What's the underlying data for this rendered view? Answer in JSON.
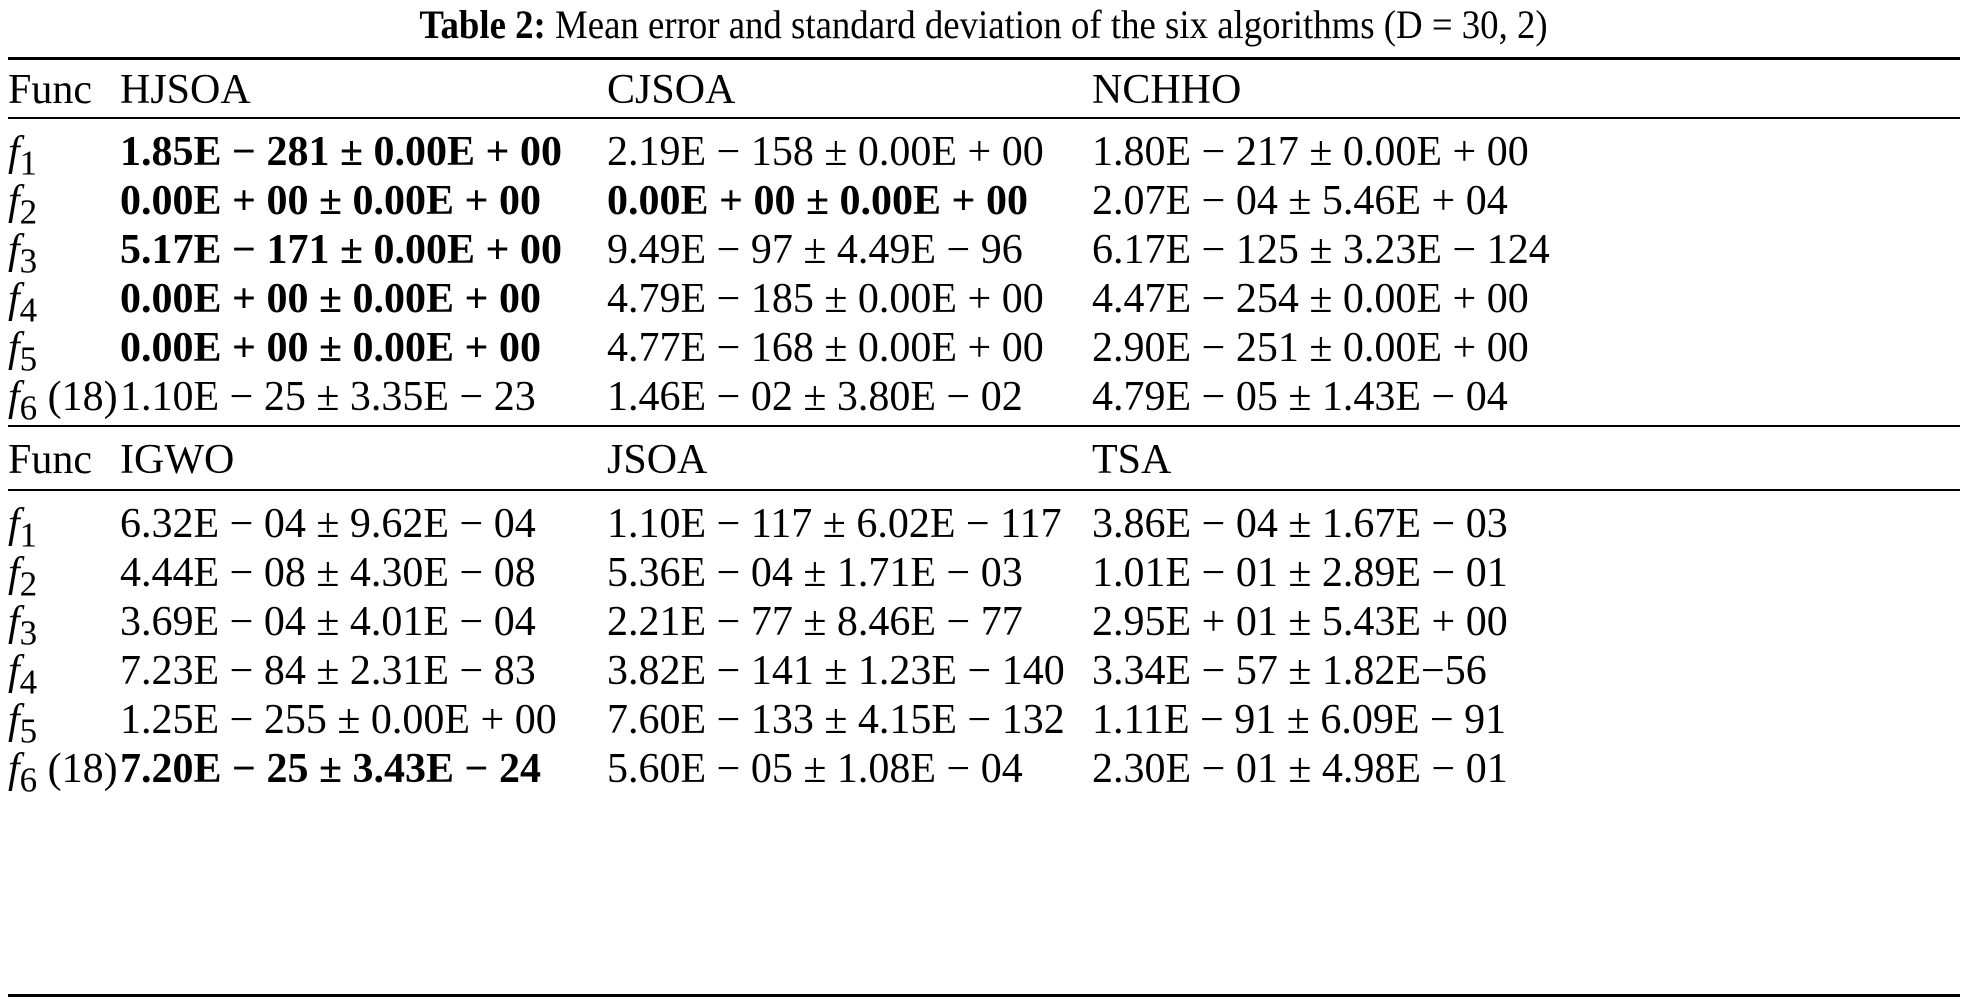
{
  "caption": {
    "label": "Table 2:",
    "text": "Mean error and standard deviation of the six algorithms (D = 30, 2)"
  },
  "blocks": [
    {
      "header": [
        "Func",
        "HJSOA",
        "CJSOA",
        "NCHHO"
      ],
      "rows": [
        {
          "fn": "f",
          "sub": "1",
          "suffix": "",
          "cells": [
            {
              "value": "1.85E − 281 ± 0.00E + 00",
              "bold": true
            },
            {
              "value": "2.19E − 158 ± 0.00E + 00",
              "bold": false
            },
            {
              "value": "1.80E − 217 ± 0.00E + 00",
              "bold": false
            }
          ]
        },
        {
          "fn": "f",
          "sub": "2",
          "suffix": "",
          "cells": [
            {
              "value": "0.00E + 00 ± 0.00E + 00",
              "bold": true
            },
            {
              "value": "0.00E + 00 ± 0.00E + 00",
              "bold": true
            },
            {
              "value": "2.07E − 04 ± 5.46E + 04",
              "bold": false
            }
          ]
        },
        {
          "fn": "f",
          "sub": "3",
          "suffix": "",
          "cells": [
            {
              "value": "5.17E − 171 ± 0.00E + 00",
              "bold": true
            },
            {
              "value": "9.49E − 97 ± 4.49E − 96",
              "bold": false
            },
            {
              "value": "6.17E − 125 ± 3.23E − 124",
              "bold": false
            }
          ]
        },
        {
          "fn": "f",
          "sub": "4",
          "suffix": "",
          "cells": [
            {
              "value": "0.00E + 00 ± 0.00E + 00",
              "bold": true
            },
            {
              "value": "4.79E − 185 ± 0.00E + 00",
              "bold": false
            },
            {
              "value": "4.47E − 254 ± 0.00E + 00",
              "bold": false
            }
          ]
        },
        {
          "fn": "f",
          "sub": "5",
          "suffix": "",
          "cells": [
            {
              "value": "0.00E + 00 ± 0.00E + 00",
              "bold": true
            },
            {
              "value": "4.77E − 168 ± 0.00E + 00",
              "bold": false
            },
            {
              "value": "2.90E − 251 ± 0.00E + 00",
              "bold": false
            }
          ]
        },
        {
          "fn": "f",
          "sub": "6",
          "suffix": " (18)",
          "cells": [
            {
              "value": "1.10E − 25 ± 3.35E − 23",
              "bold": false
            },
            {
              "value": "1.46E − 02 ± 3.80E − 02",
              "bold": false
            },
            {
              "value": "4.79E − 05 ± 1.43E − 04",
              "bold": false
            }
          ]
        }
      ]
    },
    {
      "header": [
        "Func",
        "IGWO",
        "JSOA",
        "TSA"
      ],
      "rows": [
        {
          "fn": "f",
          "sub": "1",
          "suffix": "",
          "cells": [
            {
              "value": "6.32E − 04 ± 9.62E − 04",
              "bold": false
            },
            {
              "value": "1.10E − 117 ± 6.02E − 117",
              "bold": false
            },
            {
              "value": "3.86E − 04 ± 1.67E − 03",
              "bold": false
            }
          ]
        },
        {
          "fn": "f",
          "sub": "2",
          "suffix": "",
          "cells": [
            {
              "value": "4.44E − 08 ± 4.30E − 08",
              "bold": false
            },
            {
              "value": "5.36E − 04 ± 1.71E − 03",
              "bold": false
            },
            {
              "value": "1.01E − 01 ± 2.89E − 01",
              "bold": false
            }
          ]
        },
        {
          "fn": "f",
          "sub": "3",
          "suffix": "",
          "cells": [
            {
              "value": "3.69E − 04 ± 4.01E − 04",
              "bold": false
            },
            {
              "value": "2.21E − 77 ± 8.46E − 77",
              "bold": false
            },
            {
              "value": "2.95E + 01 ± 5.43E + 00",
              "bold": false
            }
          ]
        },
        {
          "fn": "f",
          "sub": "4",
          "suffix": "",
          "cells": [
            {
              "value": "7.23E − 84 ± 2.31E − 83",
              "bold": false
            },
            {
              "value": "3.82E − 141 ± 1.23E − 140",
              "bold": false
            },
            {
              "value": "3.34E − 57 ± 1.82E−56",
              "bold": false
            }
          ]
        },
        {
          "fn": "f",
          "sub": "5",
          "suffix": "",
          "cells": [
            {
              "value": "1.25E − 255 ± 0.00E + 00",
              "bold": false
            },
            {
              "value": "7.60E − 133 ± 4.15E − 132",
              "bold": false
            },
            {
              "value": "1.11E − 91 ± 6.09E − 91",
              "bold": false
            }
          ]
        },
        {
          "fn": "f",
          "sub": "6",
          "suffix": " (18)",
          "cells": [
            {
              "value": "7.20E − 25 ± 3.43E − 24",
              "bold": true
            },
            {
              "value": "5.60E − 05 ± 1.08E − 04",
              "bold": false
            },
            {
              "value": "2.30E − 01 ± 4.98E − 01",
              "bold": false
            }
          ]
        }
      ]
    }
  ]
}
